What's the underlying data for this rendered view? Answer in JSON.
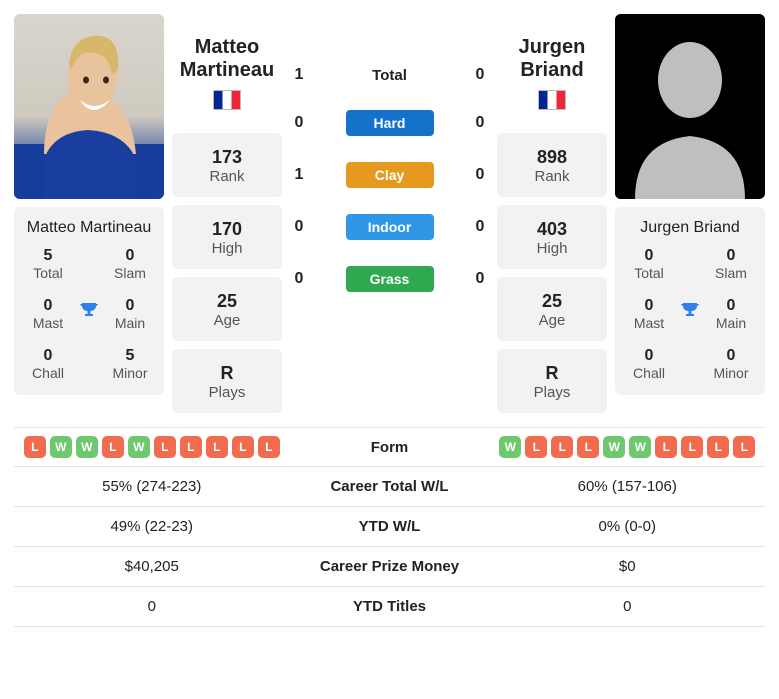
{
  "players": {
    "p1": {
      "name": "Matteo Martineau",
      "first": "Matteo",
      "last": "Martineau",
      "flag": "fr"
    },
    "p2": {
      "name": "Jurgen Briand",
      "first": "Jurgen",
      "last": "Briand",
      "flag": "fr"
    }
  },
  "stats": {
    "p1": {
      "rank": "173",
      "high": "170",
      "age": "25",
      "plays": "R"
    },
    "p2": {
      "rank": "898",
      "high": "403",
      "age": "25",
      "plays": "R"
    },
    "labels": {
      "rank": "Rank",
      "high": "High",
      "age": "Age",
      "plays": "Plays"
    }
  },
  "h2h": {
    "rows": [
      {
        "p1": "1",
        "label": "Total",
        "p2": "0",
        "pill": false
      },
      {
        "p1": "0",
        "label": "Hard",
        "p2": "0",
        "pill": true,
        "color": "#1473c8"
      },
      {
        "p1": "1",
        "label": "Clay",
        "p2": "0",
        "pill": true,
        "color": "#e59a1f"
      },
      {
        "p1": "0",
        "label": "Indoor",
        "p2": "0",
        "pill": true,
        "color": "#2f98e6"
      },
      {
        "p1": "0",
        "label": "Grass",
        "p2": "0",
        "pill": true,
        "color": "#2fa84f"
      }
    ]
  },
  "titles": {
    "labels": {
      "total": "Total",
      "slam": "Slam",
      "mast": "Mast",
      "main": "Main",
      "chall": "Chall",
      "minor": "Minor"
    },
    "p1": {
      "total": "5",
      "slam": "0",
      "mast": "0",
      "main": "0",
      "chall": "0",
      "minor": "5"
    },
    "p2": {
      "total": "0",
      "slam": "0",
      "mast": "0",
      "main": "0",
      "chall": "0",
      "minor": "0"
    }
  },
  "table": {
    "rows": [
      {
        "label": "Form"
      },
      {
        "label": "Career Total W/L",
        "p1": "55% (274-223)",
        "p2": "60% (157-106)"
      },
      {
        "label": "YTD W/L",
        "p1": "49% (22-23)",
        "p2": "0% (0-0)"
      },
      {
        "label": "Career Prize Money",
        "p1": "$40,205",
        "p2": "$0"
      },
      {
        "label": "YTD Titles",
        "p1": "0",
        "p2": "0"
      }
    ]
  },
  "form": {
    "p1": [
      "L",
      "W",
      "W",
      "L",
      "W",
      "L",
      "L",
      "L",
      "L",
      "L"
    ],
    "p2": [
      "W",
      "L",
      "L",
      "L",
      "W",
      "W",
      "L",
      "L",
      "L",
      "L"
    ]
  },
  "colors": {
    "win": "#6ec86e",
    "loss": "#f16b4e",
    "card_bg": "#f2f2f2",
    "trophy": "#2f80ed"
  }
}
